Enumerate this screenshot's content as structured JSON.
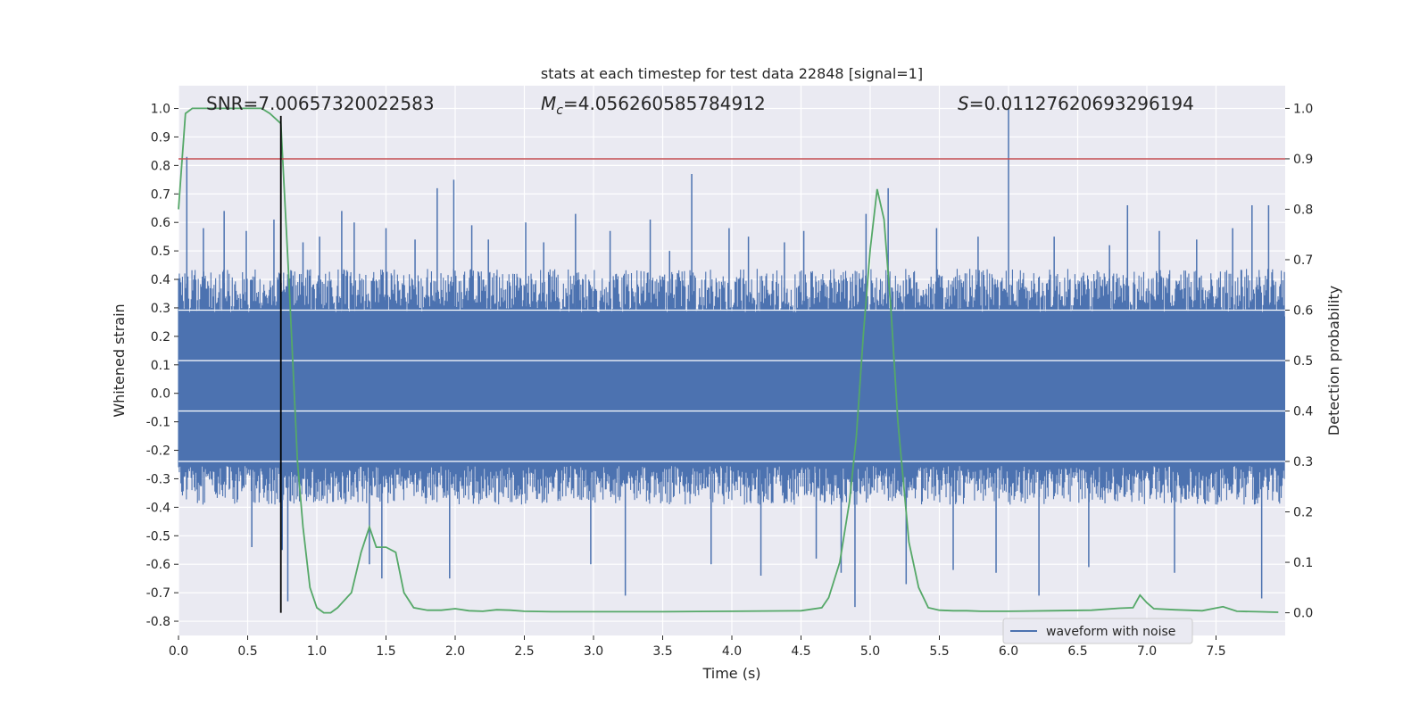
{
  "chart_data": {
    "type": "line",
    "title": "stats at each timestep for test data 22848 [signal=1]",
    "xlabel": "Time (s)",
    "ylabel_left": "Whitened strain",
    "ylabel_right": "Detection probability",
    "xlim": [
      0.0,
      8.0
    ],
    "ylim_left": [
      -0.85,
      1.08
    ],
    "ylim_right": [
      -0.045,
      1.045
    ],
    "x_ticks": [
      "0.0",
      "0.5",
      "1.0",
      "1.5",
      "2.0",
      "2.5",
      "3.0",
      "3.5",
      "4.0",
      "4.5",
      "5.0",
      "5.5",
      "6.0",
      "6.5",
      "7.0",
      "7.5"
    ],
    "y_ticks_left": [
      "1.0",
      "0.9",
      "0.8",
      "0.7",
      "0.6",
      "0.5",
      "0.4",
      "0.3",
      "0.2",
      "0.1",
      "0.0",
      "-0.1",
      "-0.2",
      "-0.3",
      "-0.4",
      "-0.5",
      "-0.6",
      "-0.7",
      "-0.8"
    ],
    "y_ticks_right": [
      "1.0",
      "0.9",
      "0.8",
      "0.7",
      "0.6",
      "0.5",
      "0.4",
      "0.3",
      "0.2",
      "0.1",
      "0.0"
    ],
    "grid": true,
    "annotations": {
      "snr": "SNR=7.00657320022583",
      "mc_symbol": "M",
      "mc_sub": "c",
      "mc_value": "=4.056260585784912",
      "s_symbol": "S",
      "s_value": "=0.01127620693296194"
    },
    "threshold_line": {
      "y_right": 0.9,
      "color": "#c44e52"
    },
    "vertical_line": {
      "x": 0.74,
      "color": "#000000"
    },
    "legend": {
      "entries": [
        "waveform with noise"
      ],
      "position": "lower right"
    },
    "series": [
      {
        "name": "waveform with noise",
        "color": "#4c72b0",
        "axis": "left",
        "envelope_upper": 0.38,
        "envelope_lower": -0.34,
        "peaks": [
          [
            0.06,
            0.83
          ],
          [
            0.18,
            0.58
          ],
          [
            0.33,
            0.64
          ],
          [
            0.49,
            0.57
          ],
          [
            0.53,
            -0.54
          ],
          [
            0.69,
            0.61
          ],
          [
            0.75,
            -0.55
          ],
          [
            0.79,
            -0.73
          ],
          [
            0.9,
            0.53
          ],
          [
            1.02,
            0.55
          ],
          [
            1.18,
            0.64
          ],
          [
            1.27,
            0.6
          ],
          [
            1.38,
            -0.6
          ],
          [
            1.47,
            -0.65
          ],
          [
            1.5,
            0.58
          ],
          [
            1.71,
            0.54
          ],
          [
            1.87,
            0.72
          ],
          [
            1.96,
            -0.65
          ],
          [
            1.99,
            0.75
          ],
          [
            2.12,
            0.59
          ],
          [
            2.24,
            0.54
          ],
          [
            2.51,
            0.6
          ],
          [
            2.64,
            0.53
          ],
          [
            2.87,
            0.63
          ],
          [
            2.98,
            -0.6
          ],
          [
            3.12,
            0.57
          ],
          [
            3.23,
            -0.71
          ],
          [
            3.41,
            0.61
          ],
          [
            3.55,
            0.5
          ],
          [
            3.71,
            0.77
          ],
          [
            3.85,
            -0.6
          ],
          [
            3.98,
            0.58
          ],
          [
            4.12,
            0.55
          ],
          [
            4.21,
            -0.64
          ],
          [
            4.38,
            0.53
          ],
          [
            4.52,
            0.57
          ],
          [
            4.61,
            -0.58
          ],
          [
            4.79,
            -0.63
          ],
          [
            4.89,
            -0.75
          ],
          [
            4.97,
            0.63
          ],
          [
            5.13,
            0.72
          ],
          [
            5.26,
            -0.67
          ],
          [
            5.48,
            0.58
          ],
          [
            5.6,
            -0.62
          ],
          [
            5.78,
            0.55
          ],
          [
            5.91,
            -0.63
          ],
          [
            6.0,
            1.0
          ],
          [
            6.22,
            -0.71
          ],
          [
            6.33,
            0.55
          ],
          [
            6.58,
            -0.61
          ],
          [
            6.73,
            0.52
          ],
          [
            6.86,
            0.66
          ],
          [
            7.09,
            0.57
          ],
          [
            7.2,
            -0.63
          ],
          [
            7.36,
            0.54
          ],
          [
            7.62,
            0.58
          ],
          [
            7.76,
            0.66
          ],
          [
            7.83,
            -0.72
          ],
          [
            7.88,
            0.66
          ]
        ]
      },
      {
        "name": "",
        "color": "#55a868",
        "axis": "right",
        "x": [
          0.0,
          0.05,
          0.1,
          0.2,
          0.3,
          0.4,
          0.5,
          0.6,
          0.66,
          0.74,
          0.8,
          0.86,
          0.9,
          0.95,
          1.0,
          1.05,
          1.1,
          1.15,
          1.25,
          1.32,
          1.38,
          1.43,
          1.5,
          1.57,
          1.63,
          1.7,
          1.8,
          1.9,
          2.0,
          2.1,
          2.2,
          2.3,
          2.4,
          2.5,
          2.7,
          3.0,
          3.5,
          4.0,
          4.5,
          4.65,
          4.7,
          4.78,
          4.85,
          4.9,
          4.95,
          5.0,
          5.05,
          5.1,
          5.15,
          5.2,
          5.28,
          5.35,
          5.42,
          5.5,
          5.6,
          5.7,
          5.8,
          6.0,
          6.3,
          6.6,
          6.8,
          6.9,
          6.95,
          7.0,
          7.05,
          7.2,
          7.4,
          7.55,
          7.65,
          7.8,
          7.95
        ],
        "y": [
          0.8,
          0.99,
          1.0,
          1.0,
          1.0,
          1.0,
          1.0,
          1.0,
          0.99,
          0.97,
          0.65,
          0.3,
          0.17,
          0.05,
          0.01,
          0.0,
          0.0,
          0.01,
          0.04,
          0.12,
          0.17,
          0.13,
          0.13,
          0.12,
          0.04,
          0.01,
          0.005,
          0.005,
          0.008,
          0.004,
          0.003,
          0.006,
          0.005,
          0.003,
          0.002,
          0.002,
          0.002,
          0.003,
          0.004,
          0.01,
          0.03,
          0.1,
          0.22,
          0.35,
          0.55,
          0.72,
          0.84,
          0.78,
          0.6,
          0.38,
          0.14,
          0.05,
          0.01,
          0.005,
          0.004,
          0.004,
          0.003,
          0.003,
          0.004,
          0.005,
          0.009,
          0.01,
          0.035,
          0.02,
          0.008,
          0.006,
          0.004,
          0.012,
          0.003,
          0.002,
          0.001
        ]
      }
    ]
  }
}
